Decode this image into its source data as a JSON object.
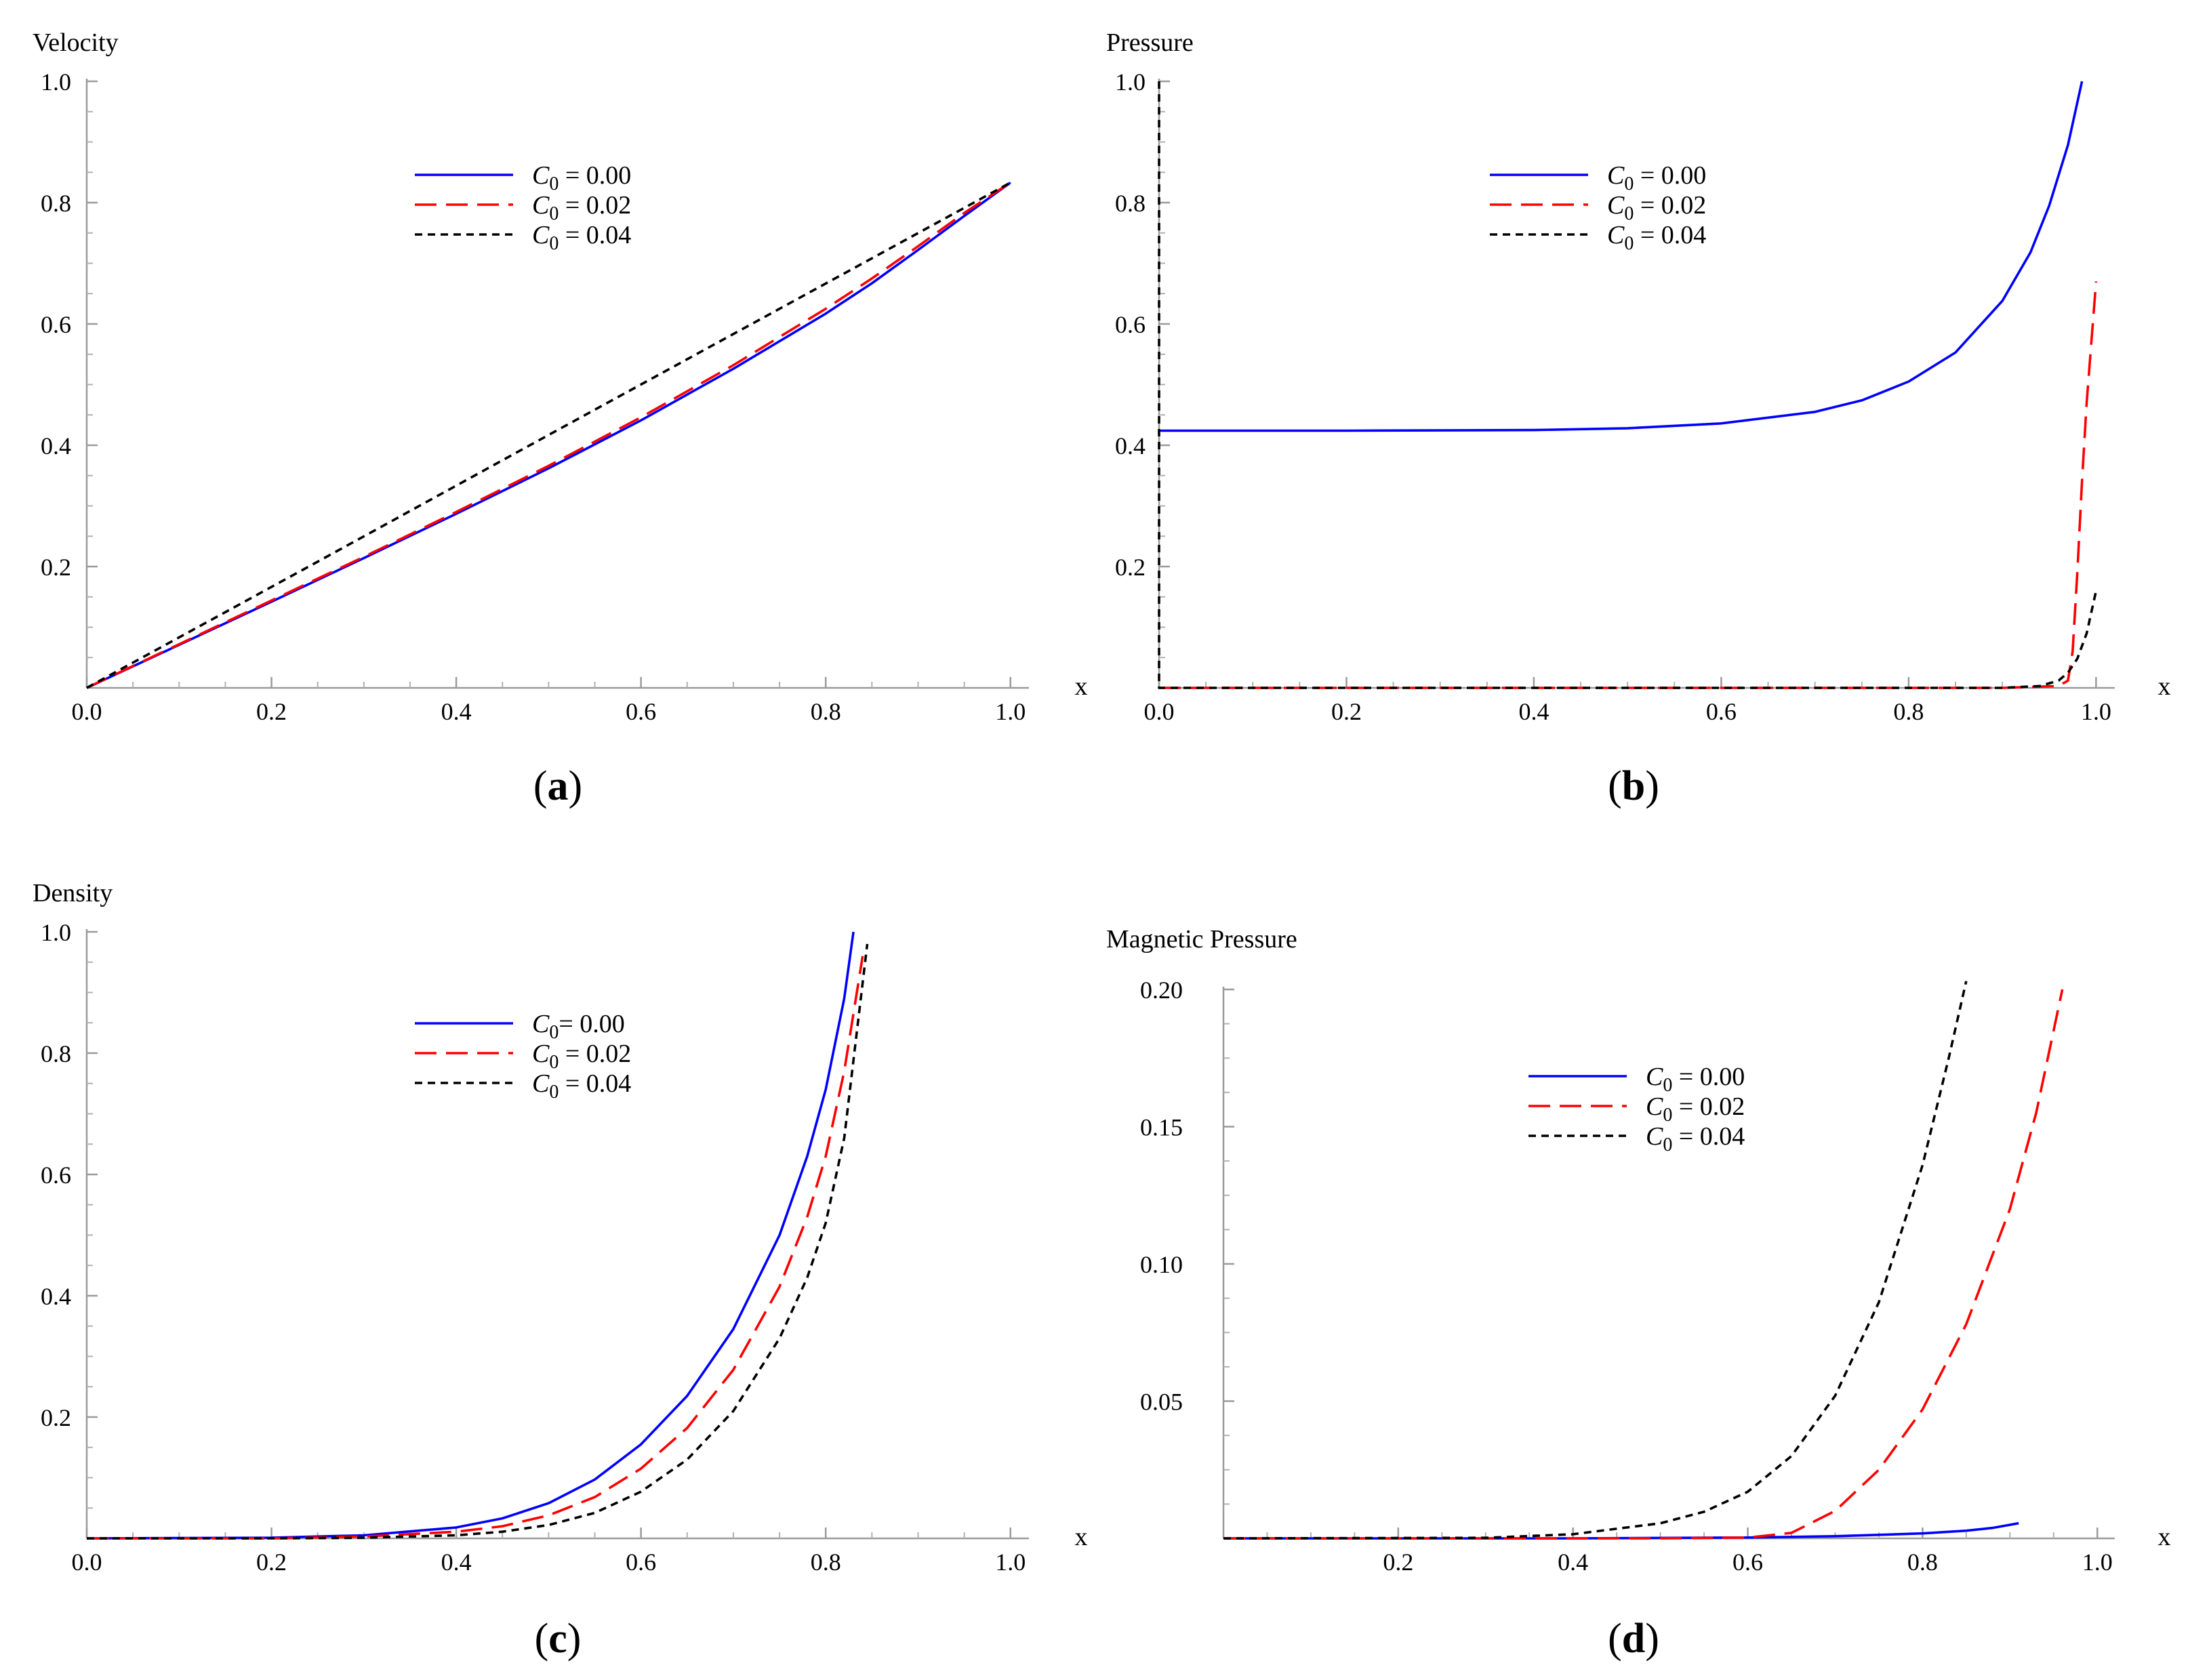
{
  "chart_data": [
    {
      "id": "a",
      "panel_label": "a",
      "type": "line",
      "title": "Velocity",
      "xlabel": "x",
      "ylabel": "Velocity",
      "xlim": [
        0,
        1.02
      ],
      "ylim": [
        0,
        1.0
      ],
      "xticks": [
        0.0,
        0.2,
        0.4,
        0.6,
        0.8,
        1.0
      ],
      "xtick_labels": [
        "0.0",
        "0.2",
        "0.4",
        "0.6",
        "0.8",
        "1.0"
      ],
      "yticks": [
        0.2,
        0.4,
        0.6,
        0.8,
        1.0
      ],
      "ytick_labels": [
        "0.2",
        "0.4",
        "0.6",
        "0.8",
        "1.0"
      ],
      "legend_position": "top-center",
      "series": [
        {
          "name": "C0 = 0.00",
          "legend_C": "C",
          "legend_sub": "0",
          "legend_rest": " = 0.00",
          "color": "#0000ff",
          "dash": "solid",
          "x": [
            0,
            0.1,
            0.2,
            0.3,
            0.4,
            0.5,
            0.6,
            0.7,
            0.8,
            0.85,
            0.9,
            0.95,
            1.0
          ],
          "y": [
            0,
            0.071,
            0.142,
            0.214,
            0.287,
            0.362,
            0.441,
            0.526,
            0.617,
            0.667,
            0.722,
            0.778,
            0.833
          ]
        },
        {
          "name": "C0 = 0.02",
          "legend_C": "C",
          "legend_sub": "0",
          "legend_rest": " = 0.02",
          "color": "#ff0000",
          "dash": "long",
          "x": [
            0,
            0.1,
            0.2,
            0.3,
            0.4,
            0.5,
            0.6,
            0.7,
            0.8,
            0.85,
            0.9,
            0.95,
            1.0
          ],
          "y": [
            0,
            0.072,
            0.144,
            0.216,
            0.29,
            0.366,
            0.446,
            0.532,
            0.625,
            0.675,
            0.728,
            0.783,
            0.833
          ]
        },
        {
          "name": "C0 = 0.04",
          "legend_C": "C",
          "legend_sub": "0",
          "legend_rest": " = 0.04",
          "color": "#000000",
          "dash": "short",
          "x": [
            0,
            0.25,
            0.5,
            0.75,
            1.0
          ],
          "y": [
            0,
            0.208,
            0.417,
            0.625,
            0.833
          ]
        }
      ]
    },
    {
      "id": "b",
      "panel_label": "b",
      "type": "line",
      "title": "Pressure",
      "xlabel": "x",
      "ylabel": "Pressure",
      "xlim": [
        0,
        1.02
      ],
      "ylim": [
        0,
        1.0
      ],
      "xticks": [
        0.0,
        0.2,
        0.4,
        0.6,
        0.8,
        1.0
      ],
      "xtick_labels": [
        "0.0",
        "0.2",
        "0.4",
        "0.6",
        "0.8",
        "1.0"
      ],
      "yticks": [
        0.2,
        0.4,
        0.6,
        0.8,
        1.0
      ],
      "ytick_labels": [
        "0.2",
        "0.4",
        "0.6",
        "0.8",
        "1.0"
      ],
      "legend_position": "top-center",
      "series": [
        {
          "name": "C0 = 0.00",
          "legend_C": "C",
          "legend_sub": "0",
          "legend_rest": " = 0.00",
          "color": "#0000ff",
          "dash": "solid",
          "x": [
            0,
            0.2,
            0.4,
            0.5,
            0.6,
            0.7,
            0.75,
            0.8,
            0.85,
            0.9,
            0.93,
            0.95,
            0.97,
            0.985
          ],
          "y": [
            0.424,
            0.424,
            0.425,
            0.428,
            0.436,
            0.455,
            0.474,
            0.505,
            0.553,
            0.638,
            0.718,
            0.795,
            0.895,
            1.0
          ]
        },
        {
          "name": "C0 = 0.02",
          "legend_C": "C",
          "legend_sub": "0",
          "legend_rest": " = 0.02",
          "color": "#ff0000",
          "dash": "long",
          "x": [
            0,
            0.3,
            0.6,
            0.9,
            0.96,
            0.97,
            0.975,
            0.98,
            0.985,
            0.99,
            1.0
          ],
          "y": [
            0,
            0,
            0,
            0,
            0.003,
            0.012,
            0.06,
            0.19,
            0.34,
            0.47,
            0.67
          ]
        },
        {
          "name": "C0 = 0.04",
          "legend_C": "C",
          "legend_sub": "0",
          "legend_rest": " = 0.04",
          "color": "#000000",
          "dash": "short",
          "x": [
            0,
            0.0,
            0.003,
            0.3,
            0.6,
            0.9,
            0.94,
            0.96,
            0.97,
            0.98,
            0.99,
            1.0
          ],
          "y": [
            1.0,
            0.0,
            0.0,
            0,
            0,
            0,
            0.003,
            0.012,
            0.025,
            0.048,
            0.09,
            0.16
          ]
        }
      ]
    },
    {
      "id": "c",
      "panel_label": "c",
      "type": "line",
      "title": "Density",
      "xlabel": "x",
      "ylabel": "Density",
      "xlim": [
        0,
        1.02
      ],
      "ylim": [
        0,
        1.0
      ],
      "xticks": [
        0.0,
        0.2,
        0.4,
        0.6,
        0.8,
        1.0
      ],
      "xtick_labels": [
        "0.0",
        "0.2",
        "0.4",
        "0.6",
        "0.8",
        "1.0"
      ],
      "yticks": [
        0.2,
        0.4,
        0.6,
        0.8,
        1.0
      ],
      "ytick_labels": [
        "0.2",
        "0.4",
        "0.6",
        "0.8",
        "1.0"
      ],
      "legend_position": "top-center",
      "series": [
        {
          "name": "C0= 0.00",
          "legend_C": "C",
          "legend_sub": "0",
          "legend_rest": "= 0.00",
          "color": "#0000ff",
          "dash": "solid",
          "x": [
            0,
            0.2,
            0.3,
            0.4,
            0.45,
            0.5,
            0.55,
            0.6,
            0.65,
            0.7,
            0.75,
            0.78,
            0.8,
            0.82,
            0.83
          ],
          "y": [
            0,
            0.001,
            0.005,
            0.018,
            0.033,
            0.058,
            0.097,
            0.155,
            0.235,
            0.345,
            0.5,
            0.63,
            0.74,
            0.89,
            1.0
          ]
        },
        {
          "name": "C0 = 0.02",
          "legend_C": "C",
          "legend_sub": "0",
          "legend_rest": " = 0.02",
          "color": "#ff0000",
          "dash": "long",
          "x": [
            0,
            0.2,
            0.3,
            0.4,
            0.45,
            0.5,
            0.55,
            0.6,
            0.65,
            0.7,
            0.75,
            0.78,
            0.8,
            0.82,
            0.84
          ],
          "y": [
            0,
            0.0,
            0.003,
            0.011,
            0.02,
            0.038,
            0.068,
            0.115,
            0.182,
            0.278,
            0.415,
            0.53,
            0.63,
            0.77,
            0.96
          ]
        },
        {
          "name": "C0 = 0.04",
          "legend_C": "C",
          "legend_sub": "0",
          "legend_rest": " = 0.04",
          "color": "#000000",
          "dash": "short",
          "x": [
            0,
            0.2,
            0.3,
            0.4,
            0.45,
            0.5,
            0.55,
            0.6,
            0.65,
            0.7,
            0.75,
            0.78,
            0.8,
            0.82,
            0.845
          ],
          "y": [
            0,
            0.0,
            0.001,
            0.005,
            0.011,
            0.022,
            0.042,
            0.077,
            0.13,
            0.21,
            0.33,
            0.43,
            0.52,
            0.66,
            0.98
          ]
        }
      ]
    },
    {
      "id": "d",
      "panel_label": "d",
      "type": "line",
      "title": "Magnetic Pressure",
      "xlabel": "x",
      "ylabel": "Magnetic Pressure",
      "xlim": [
        0,
        1.02
      ],
      "ylim": [
        0,
        0.2
      ],
      "xticks": [
        0.2,
        0.4,
        0.6,
        0.8,
        1.0
      ],
      "xtick_labels": [
        "0.2",
        "0.4",
        "0.6",
        "0.8",
        "1.0"
      ],
      "yticks": [
        0.05,
        0.1,
        0.15,
        0.2
      ],
      "ytick_labels": [
        "0.05",
        "0.10",
        "0.15",
        "0.20"
      ],
      "legend_position": "top-center",
      "series": [
        {
          "name": "C0 = 0.00",
          "legend_C": "C",
          "legend_sub": "0",
          "legend_rest": " = 0.00",
          "color": "#0000ff",
          "dash": "solid",
          "x": [
            0,
            0.4,
            0.6,
            0.7,
            0.8,
            0.85,
            0.88,
            0.91
          ],
          "y": [
            0,
            0.0,
            0.0003,
            0.0008,
            0.0018,
            0.0028,
            0.0038,
            0.0055
          ]
        },
        {
          "name": "C0 = 0.02",
          "legend_C": "C",
          "legend_sub": "0",
          "legend_rest": " = 0.02",
          "color": "#ff0000",
          "dash": "long",
          "x": [
            0,
            0.5,
            0.6,
            0.65,
            0.7,
            0.75,
            0.8,
            0.85,
            0.9,
            0.93,
            0.96
          ],
          "y": [
            0,
            0.0,
            0.0003,
            0.002,
            0.01,
            0.025,
            0.047,
            0.078,
            0.12,
            0.155,
            0.2
          ]
        },
        {
          "name": "C0 = 0.04",
          "legend_C": "C",
          "legend_sub": "0",
          "legend_rest": " = 0.04",
          "color": "#000000",
          "dash": "short",
          "x": [
            0,
            0.3,
            0.4,
            0.5,
            0.55,
            0.6,
            0.65,
            0.7,
            0.75,
            0.8,
            0.83,
            0.85
          ],
          "y": [
            0,
            0.0002,
            0.0015,
            0.0055,
            0.0097,
            0.017,
            0.03,
            0.052,
            0.086,
            0.136,
            0.175,
            0.203
          ]
        }
      ]
    }
  ]
}
